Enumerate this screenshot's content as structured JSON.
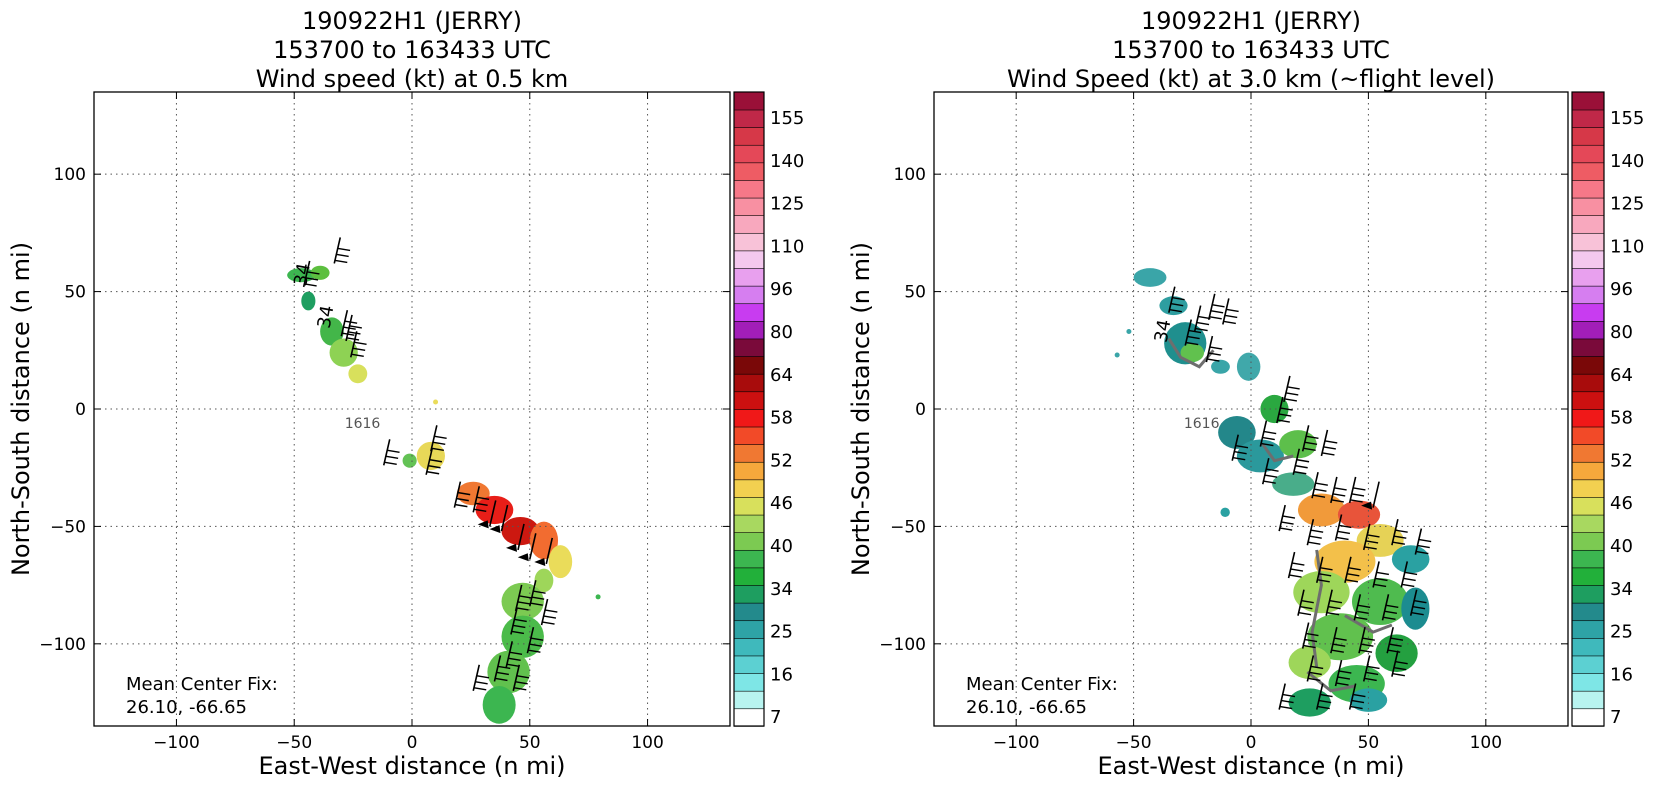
{
  "figure": {
    "note_title": ""
  },
  "chart_data": [
    {
      "type": "heatmap",
      "title_lines": [
        "190922H1 (JERRY)",
        "153700 to 163433 UTC",
        "Wind speed (kt) at 0.5 km"
      ],
      "xlabel": "East-West distance (n mi)",
      "ylabel": "North-South distance (n mi)",
      "xlim": [
        -135,
        135
      ],
      "ylim": [
        -135,
        135
      ],
      "xticks": [
        -100,
        -50,
        0,
        50,
        100
      ],
      "yticks": [
        -100,
        -50,
        0,
        50,
        100
      ],
      "grid": true,
      "time_label": "1616",
      "contour_labels": [
        "34",
        "34"
      ],
      "annotation_lines": [
        "Mean Center Fix:",
        "26.10, -66.65"
      ],
      "colorbar": {
        "tick_labels": [
          "7",
          "16",
          "25",
          "34",
          "40",
          "46",
          "52",
          "58",
          "64",
          "80",
          "96",
          "110",
          "125",
          "140",
          "155"
        ]
      },
      "regions": [
        {
          "x": -47,
          "y": 57,
          "rx": 6,
          "ry": 3,
          "color": "#3cb650"
        },
        {
          "x": -39,
          "y": 58,
          "rx": 4,
          "ry": 3,
          "color": "#5cbf3f"
        },
        {
          "x": -44,
          "y": 46,
          "rx": 3,
          "ry": 4,
          "color": "#1e9e60"
        },
        {
          "x": -34,
          "y": 33,
          "rx": 5,
          "ry": 6,
          "color": "#43b649"
        },
        {
          "x": -29,
          "y": 24,
          "rx": 6,
          "ry": 6,
          "color": "#8ed254"
        },
        {
          "x": -23,
          "y": 15,
          "rx": 4,
          "ry": 4,
          "color": "#d8e05c"
        },
        {
          "x": 8,
          "y": -20,
          "rx": 6,
          "ry": 6,
          "color": "#e8d858"
        },
        {
          "x": -1,
          "y": -22,
          "rx": 3,
          "ry": 3,
          "color": "#63c255"
        },
        {
          "x": 26,
          "y": -36,
          "rx": 7,
          "ry": 5,
          "color": "#f07832"
        },
        {
          "x": 35,
          "y": -43,
          "rx": 8,
          "ry": 6,
          "color": "#e81e18"
        },
        {
          "x": 46,
          "y": -52,
          "rx": 8,
          "ry": 6,
          "color": "#cc1810"
        },
        {
          "x": 56,
          "y": -56,
          "rx": 6,
          "ry": 8,
          "color": "#f26c30"
        },
        {
          "x": 63,
          "y": -65,
          "rx": 5,
          "ry": 7,
          "color": "#eadc5a"
        },
        {
          "x": 56,
          "y": -73,
          "rx": 4,
          "ry": 5,
          "color": "#9ed65a"
        },
        {
          "x": 47,
          "y": -82,
          "rx": 9,
          "ry": 8,
          "color": "#7cca52"
        },
        {
          "x": 47,
          "y": -97,
          "rx": 9,
          "ry": 9,
          "color": "#4bbb4a"
        },
        {
          "x": 41,
          "y": -112,
          "rx": 9,
          "ry": 9,
          "color": "#61c14e"
        },
        {
          "x": 37,
          "y": -126,
          "rx": 7,
          "ry": 8,
          "color": "#3cb650"
        },
        {
          "x": 79,
          "y": -80,
          "rx": 1,
          "ry": 1,
          "color": "#3cb650"
        },
        {
          "x": 10,
          "y": 3,
          "rx": 1,
          "ry": 1,
          "color": "#eadc5a"
        }
      ],
      "barbs": [
        {
          "x": -33,
          "y": 62,
          "flip": false
        },
        {
          "x": -46,
          "y": 52,
          "flip": false
        },
        {
          "x": -28,
          "y": 29,
          "flip": false
        },
        {
          "x": -26,
          "y": 22,
          "flip": false
        },
        {
          "x": -30,
          "y": 31,
          "flip": false
        },
        {
          "x": -12,
          "y": -24,
          "flip": false
        },
        {
          "x": 6,
          "y": -28,
          "flip": false
        },
        {
          "x": 8,
          "y": -18,
          "flip": false
        },
        {
          "x": 18,
          "y": -42,
          "flip": false
        },
        {
          "x": 26,
          "y": -44,
          "flip": false
        },
        {
          "x": 33,
          "y": -50,
          "flip": true
        },
        {
          "x": 38,
          "y": -52,
          "flip": true
        },
        {
          "x": 45,
          "y": -60,
          "flip": true
        },
        {
          "x": 50,
          "y": -64,
          "flip": true
        },
        {
          "x": 57,
          "y": -66,
          "flip": true
        },
        {
          "x": 44,
          "y": -86,
          "flip": false
        },
        {
          "x": 50,
          "y": -84,
          "flip": false
        },
        {
          "x": 55,
          "y": -92,
          "flip": false
        },
        {
          "x": 42,
          "y": -96,
          "flip": false
        },
        {
          "x": 49,
          "y": -104,
          "flip": false
        },
        {
          "x": 40,
          "y": -110,
          "flip": false
        },
        {
          "x": 35,
          "y": -116,
          "flip": false
        },
        {
          "x": 26,
          "y": -120,
          "flip": false
        },
        {
          "x": 43,
          "y": -120,
          "flip": false
        }
      ],
      "contours": []
    },
    {
      "type": "heatmap",
      "title_lines": [
        "190922H1 (JERRY)",
        "153700 to 163433 UTC",
        "Wind Speed (kt) at 3.0 km (~flight level)"
      ],
      "xlabel": "East-West distance (n mi)",
      "ylabel": "North-South distance (n mi)",
      "xlim": [
        -135,
        135
      ],
      "ylim": [
        -135,
        135
      ],
      "xticks": [
        -100,
        -50,
        0,
        50,
        100
      ],
      "yticks": [
        -100,
        -50,
        0,
        50,
        100
      ],
      "grid": true,
      "time_label": "1616",
      "contour_labels": [
        "34",
        "34"
      ],
      "annotation_lines": [
        "Mean Center Fix:",
        "26.10, -66.65"
      ],
      "colorbar": {
        "tick_labels": [
          "7",
          "16",
          "25",
          "34",
          "40",
          "46",
          "52",
          "58",
          "64",
          "80",
          "96",
          "110",
          "125",
          "140",
          "155"
        ]
      },
      "regions": [
        {
          "x": -43,
          "y": 56,
          "rx": 7,
          "ry": 4,
          "color": "#3aa5a8"
        },
        {
          "x": -33,
          "y": 44,
          "rx": 6,
          "ry": 4,
          "color": "#2e9ea0"
        },
        {
          "x": -28,
          "y": 28,
          "rx": 9,
          "ry": 9,
          "color": "#1f8f8e"
        },
        {
          "x": -25,
          "y": 24,
          "rx": 5,
          "ry": 4,
          "color": "#61c14e"
        },
        {
          "x": -13,
          "y": 18,
          "rx": 4,
          "ry": 3,
          "color": "#3aa5a8"
        },
        {
          "x": -1,
          "y": 18,
          "rx": 5,
          "ry": 6,
          "color": "#40a8aa"
        },
        {
          "x": 10,
          "y": 0,
          "rx": 6,
          "ry": 6,
          "color": "#2aa840"
        },
        {
          "x": -6,
          "y": -10,
          "rx": 8,
          "ry": 7,
          "color": "#23878a"
        },
        {
          "x": 4,
          "y": -20,
          "rx": 10,
          "ry": 7,
          "color": "#2b999c"
        },
        {
          "x": 20,
          "y": -15,
          "rx": 8,
          "ry": 6,
          "color": "#5dbf4b"
        },
        {
          "x": 18,
          "y": -32,
          "rx": 9,
          "ry": 5,
          "color": "#49ad8a"
        },
        {
          "x": 30,
          "y": -43,
          "rx": 10,
          "ry": 7,
          "color": "#f19a3a"
        },
        {
          "x": 46,
          "y": -45,
          "rx": 9,
          "ry": 6,
          "color": "#e8543a"
        },
        {
          "x": 55,
          "y": -56,
          "rx": 10,
          "ry": 7,
          "color": "#e6d256"
        },
        {
          "x": 68,
          "y": -64,
          "rx": 8,
          "ry": 6,
          "color": "#2aa1a2"
        },
        {
          "x": 40,
          "y": -65,
          "rx": 13,
          "ry": 9,
          "color": "#f3c04a"
        },
        {
          "x": 30,
          "y": -78,
          "rx": 12,
          "ry": 9,
          "color": "#9ed65a"
        },
        {
          "x": 55,
          "y": -82,
          "rx": 12,
          "ry": 10,
          "color": "#4fbb4f"
        },
        {
          "x": 70,
          "y": -85,
          "rx": 6,
          "ry": 9,
          "color": "#1c8c90"
        },
        {
          "x": 38,
          "y": -97,
          "rx": 14,
          "ry": 10,
          "color": "#61c14e"
        },
        {
          "x": 62,
          "y": -104,
          "rx": 9,
          "ry": 8,
          "color": "#24a040"
        },
        {
          "x": 25,
          "y": -108,
          "rx": 9,
          "ry": 7,
          "color": "#9ed65a"
        },
        {
          "x": 45,
          "y": -117,
          "rx": 12,
          "ry": 8,
          "color": "#3cb650"
        },
        {
          "x": 25,
          "y": -125,
          "rx": 9,
          "ry": 6,
          "color": "#1e9e60"
        },
        {
          "x": 50,
          "y": -124,
          "rx": 8,
          "ry": 5,
          "color": "#2aa1a2"
        },
        {
          "x": -11,
          "y": -44,
          "rx": 2,
          "ry": 2,
          "color": "#2aa1a2"
        },
        {
          "x": -52,
          "y": 33,
          "rx": 1,
          "ry": 1,
          "color": "#3aa5a8"
        },
        {
          "x": -57,
          "y": 23,
          "rx": 1,
          "ry": 1,
          "color": "#3aa5a8"
        }
      ],
      "barbs": [
        {
          "x": -35,
          "y": 41,
          "flip": false
        },
        {
          "x": -18,
          "y": 38,
          "flip": false
        },
        {
          "x": -12,
          "y": 36,
          "flip": false
        },
        {
          "x": -24,
          "y": 33,
          "flip": false
        },
        {
          "x": -28,
          "y": 27,
          "flip": false
        },
        {
          "x": -19,
          "y": 20,
          "flip": false
        },
        {
          "x": 14,
          "y": 3,
          "flip": false
        },
        {
          "x": 11,
          "y": -6,
          "flip": false
        },
        {
          "x": -8,
          "y": -22,
          "flip": false
        },
        {
          "x": 4,
          "y": -16,
          "flip": false
        },
        {
          "x": 22,
          "y": -18,
          "flip": false
        },
        {
          "x": 30,
          "y": -20,
          "flip": false
        },
        {
          "x": 5,
          "y": -32,
          "flip": false
        },
        {
          "x": 18,
          "y": -28,
          "flip": false
        },
        {
          "x": 26,
          "y": -38,
          "flip": false
        },
        {
          "x": 34,
          "y": -40,
          "flip": false
        },
        {
          "x": 42,
          "y": -40,
          "flip": false
        },
        {
          "x": 52,
          "y": -42,
          "flip": true
        },
        {
          "x": 12,
          "y": -52,
          "flip": false
        },
        {
          "x": 24,
          "y": -58,
          "flip": false
        },
        {
          "x": 36,
          "y": -56,
          "flip": false
        },
        {
          "x": 48,
          "y": -60,
          "flip": false
        },
        {
          "x": 60,
          "y": -58,
          "flip": false
        },
        {
          "x": 70,
          "y": -62,
          "flip": false
        },
        {
          "x": 16,
          "y": -72,
          "flip": false
        },
        {
          "x": 28,
          "y": -74,
          "flip": false
        },
        {
          "x": 40,
          "y": -74,
          "flip": false
        },
        {
          "x": 52,
          "y": -76,
          "flip": false
        },
        {
          "x": 64,
          "y": -76,
          "flip": false
        },
        {
          "x": 20,
          "y": -88,
          "flip": false
        },
        {
          "x": 32,
          "y": -88,
          "flip": false
        },
        {
          "x": 44,
          "y": -90,
          "flip": false
        },
        {
          "x": 56,
          "y": -90,
          "flip": false
        },
        {
          "x": 68,
          "y": -88,
          "flip": false
        },
        {
          "x": 22,
          "y": -102,
          "flip": false
        },
        {
          "x": 34,
          "y": -104,
          "flip": false
        },
        {
          "x": 46,
          "y": -104,
          "flip": false
        },
        {
          "x": 58,
          "y": -104,
          "flip": false
        },
        {
          "x": 24,
          "y": -116,
          "flip": false
        },
        {
          "x": 36,
          "y": -118,
          "flip": false
        },
        {
          "x": 48,
          "y": -116,
          "flip": false
        },
        {
          "x": 60,
          "y": -114,
          "flip": false
        },
        {
          "x": 12,
          "y": -128,
          "flip": false
        },
        {
          "x": 28,
          "y": -128,
          "flip": false
        },
        {
          "x": 42,
          "y": -128,
          "flip": false
        }
      ],
      "contours": [
        [
          [
            -35,
            30
          ],
          [
            -30,
            22
          ],
          [
            -22,
            18
          ],
          [
            -16,
            25
          ]
        ],
        [
          [
            5,
            -15
          ],
          [
            10,
            -22
          ],
          [
            18,
            -20
          ]
        ],
        [
          [
            28,
            -60
          ],
          [
            30,
            -75
          ],
          [
            26,
            -95
          ],
          [
            28,
            -110
          ]
        ],
        [
          [
            40,
            -88
          ],
          [
            52,
            -95
          ],
          [
            60,
            -92
          ]
        ],
        [
          [
            24,
            -112
          ],
          [
            34,
            -120
          ],
          [
            44,
            -118
          ]
        ]
      ]
    }
  ],
  "colorscale": [
    "#ffffff",
    "#b8f4f0",
    "#7ee6e6",
    "#5cd0d2",
    "#3fb9bc",
    "#2ea3a6",
    "#238a8c",
    "#1e9e60",
    "#22b03a",
    "#3cb650",
    "#7cca52",
    "#a8d860",
    "#d8e05c",
    "#f2d050",
    "#f6a83c",
    "#f07832",
    "#f24a28",
    "#f01818",
    "#cc1010",
    "#a80c0c",
    "#7a0808",
    "#7a0a3a",
    "#a21eb8",
    "#c83cf0",
    "#d67ef0",
    "#e8a0ee",
    "#f4c8ee",
    "#f8c2d8",
    "#f8a8be",
    "#f890a2",
    "#f67888",
    "#ee5c64",
    "#e44858",
    "#d63848",
    "#c02848",
    "#9a1038"
  ]
}
